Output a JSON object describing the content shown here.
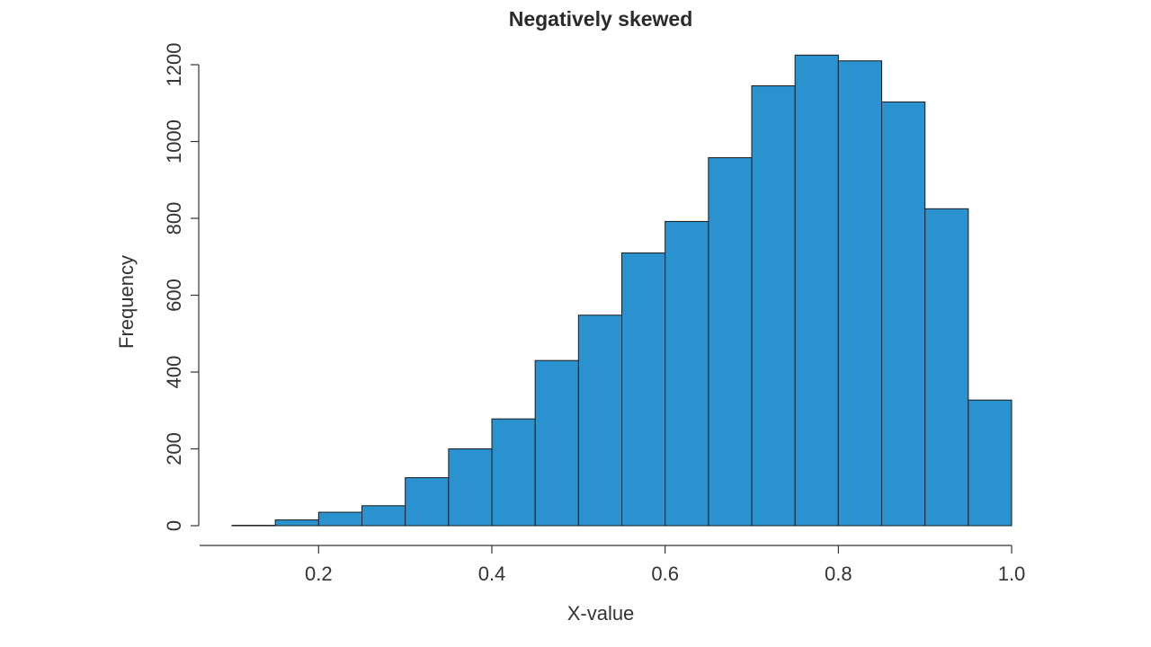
{
  "chart_data": {
    "type": "bar",
    "title": "Negatively skewed",
    "xlabel": "X-value",
    "ylabel": "Frequency",
    "bar_color": "#2b92d0",
    "xlim": [
      0.1,
      1.0
    ],
    "ylim": [
      0,
      1200
    ],
    "x_ticks": [
      0.2,
      0.4,
      0.6,
      0.8,
      1.0
    ],
    "x_tick_labels": [
      "0.2",
      "0.4",
      "0.6",
      "0.8",
      "1.0"
    ],
    "y_ticks": [
      0,
      200,
      400,
      600,
      800,
      1000,
      1200
    ],
    "y_tick_labels": [
      "0",
      "200",
      "400",
      "600",
      "800",
      "1000",
      "1200"
    ],
    "bins": [
      {
        "start": 0.1,
        "end": 0.15,
        "value": 1
      },
      {
        "start": 0.15,
        "end": 0.2,
        "value": 15
      },
      {
        "start": 0.2,
        "end": 0.25,
        "value": 35
      },
      {
        "start": 0.25,
        "end": 0.3,
        "value": 52
      },
      {
        "start": 0.3,
        "end": 0.35,
        "value": 125
      },
      {
        "start": 0.35,
        "end": 0.4,
        "value": 200
      },
      {
        "start": 0.4,
        "end": 0.45,
        "value": 278
      },
      {
        "start": 0.45,
        "end": 0.5,
        "value": 430
      },
      {
        "start": 0.5,
        "end": 0.55,
        "value": 548
      },
      {
        "start": 0.55,
        "end": 0.6,
        "value": 710
      },
      {
        "start": 0.6,
        "end": 0.65,
        "value": 792
      },
      {
        "start": 0.65,
        "end": 0.7,
        "value": 958
      },
      {
        "start": 0.7,
        "end": 0.75,
        "value": 1145
      },
      {
        "start": 0.75,
        "end": 0.8,
        "value": 1225
      },
      {
        "start": 0.8,
        "end": 0.85,
        "value": 1210
      },
      {
        "start": 0.85,
        "end": 0.9,
        "value": 1103
      },
      {
        "start": 0.9,
        "end": 0.95,
        "value": 825
      },
      {
        "start": 0.95,
        "end": 1.0,
        "value": 327
      }
    ],
    "grid": false,
    "legend": "none"
  }
}
